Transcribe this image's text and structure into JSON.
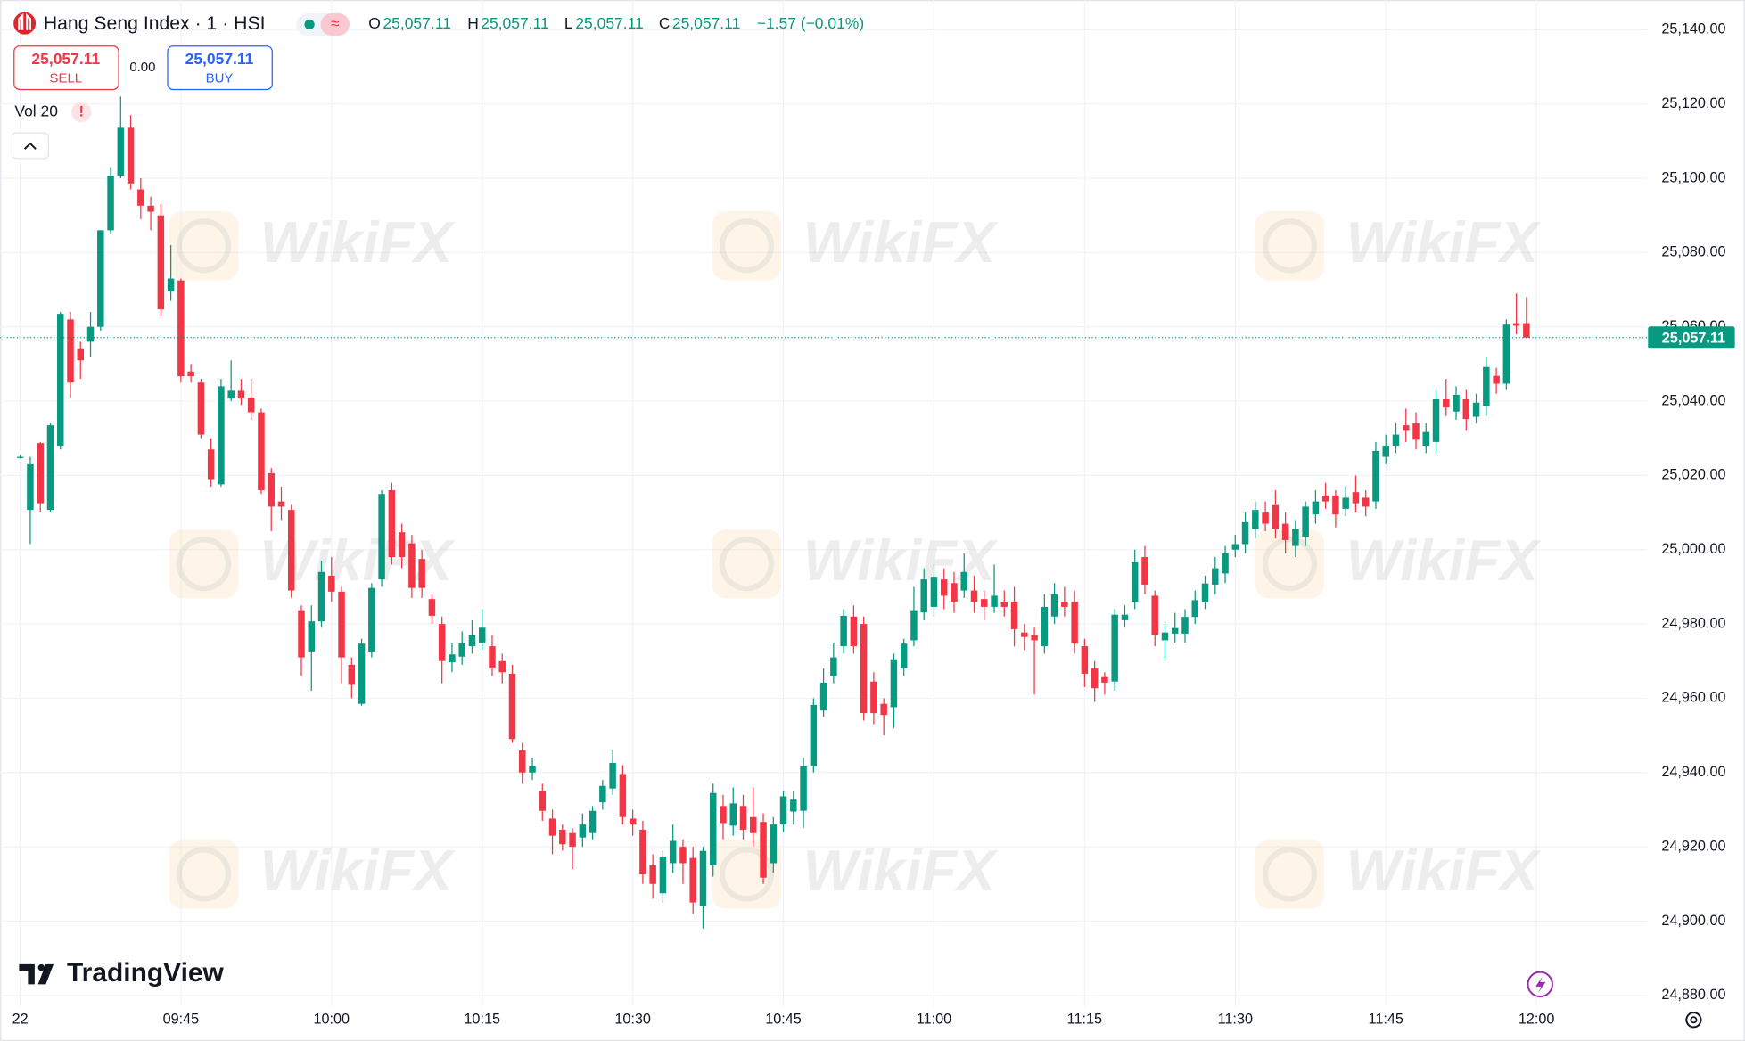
{
  "header": {
    "symbol": "Hang Seng Index · 1 · HSI",
    "ohlc": [
      {
        "label": "O",
        "value": "25,057.11"
      },
      {
        "label": "H",
        "value": "25,057.11"
      },
      {
        "label": "L",
        "value": "25,057.11"
      },
      {
        "label": "C",
        "value": "25,057.11"
      }
    ],
    "change": "−1.57 (−0.01%)"
  },
  "trade": {
    "sell_price": "25,057.11",
    "sell": "SELL",
    "spread": "0.00",
    "buy_price": "25,057.11",
    "buy": "BUY"
  },
  "volume_indicator": "Vol 20",
  "warning": "!",
  "brand": "TradingView",
  "watermark": "WikiFX",
  "chart_data": {
    "type": "candlestick",
    "up_color": "#089981",
    "down_color": "#f23645",
    "grid": true,
    "xlim": [
      "09:27",
      "12:11"
    ],
    "xticks": [
      {
        "value": "09:29",
        "label": "22"
      },
      "09:45",
      "10:00",
      "10:15",
      "10:30",
      "10:45",
      "11:00",
      "11:15",
      "11:30",
      "11:45",
      "12:00"
    ],
    "ylim": [
      24877,
      25148
    ],
    "yticks": [
      {
        "value": 25140,
        "label": "25,140.00"
      },
      {
        "value": 25120,
        "label": "25,120.00"
      },
      {
        "value": 25100,
        "label": "25,100.00"
      },
      {
        "value": 25080,
        "label": "25,080.00"
      },
      {
        "value": 25060,
        "label": "25,060.00"
      },
      {
        "value": 25040,
        "label": "25,040.00"
      },
      {
        "value": 25020,
        "label": "25,020.00"
      },
      {
        "value": 25000,
        "label": "25,000.00"
      },
      {
        "value": 24980,
        "label": "24,980.00"
      },
      {
        "value": 24960,
        "label": "24,960.00"
      },
      {
        "value": 24940,
        "label": "24,940.00"
      },
      {
        "value": 24920,
        "label": "24,920.00"
      },
      {
        "value": 24900,
        "label": "24,900.00"
      },
      {
        "value": 24880,
        "label": "24,880.00"
      }
    ],
    "last_price": {
      "value": 25057.11,
      "label": "25,057.11"
    },
    "x": [
      "09:29",
      "09:30",
      "09:31",
      "09:32",
      "09:33",
      "09:34",
      "09:35",
      "09:36",
      "09:37",
      "09:38",
      "09:39",
      "09:40",
      "09:41",
      "09:42",
      "09:43",
      "09:44",
      "09:45",
      "09:46",
      "09:47",
      "09:48",
      "09:49",
      "09:50",
      "09:51",
      "09:52",
      "09:53",
      "09:54",
      "09:55",
      "09:56",
      "09:57",
      "09:58",
      "09:59",
      "10:00",
      "10:01",
      "10:02",
      "10:03",
      "10:04",
      "10:05",
      "10:06",
      "10:07",
      "10:08",
      "10:09",
      "10:10",
      "10:11",
      "10:12",
      "10:13",
      "10:14",
      "10:15",
      "10:16",
      "10:17",
      "10:18",
      "10:19",
      "10:20",
      "10:21",
      "10:22",
      "10:23",
      "10:24",
      "10:25",
      "10:26",
      "10:27",
      "10:28",
      "10:29",
      "10:30",
      "10:31",
      "10:32",
      "10:33",
      "10:34",
      "10:35",
      "10:36",
      "10:37",
      "10:38",
      "10:39",
      "10:40",
      "10:41",
      "10:42",
      "10:43",
      "10:44",
      "10:45",
      "10:46",
      "10:47",
      "10:48",
      "10:49",
      "10:50",
      "10:51",
      "10:52",
      "10:53",
      "10:54",
      "10:55",
      "10:56",
      "10:57",
      "10:58",
      "10:59",
      "11:00",
      "11:01",
      "11:02",
      "11:03",
      "11:04",
      "11:05",
      "11:06",
      "11:07",
      "11:08",
      "11:09",
      "11:10",
      "11:11",
      "11:12",
      "11:13",
      "11:14",
      "11:15",
      "11:16",
      "11:17",
      "11:18",
      "11:19",
      "11:20",
      "11:21",
      "11:22",
      "11:23",
      "11:24",
      "11:25",
      "11:26",
      "11:27",
      "11:28",
      "11:29",
      "11:30",
      "11:31",
      "11:32",
      "11:33",
      "11:34",
      "11:35",
      "11:36",
      "11:37",
      "11:38",
      "11:39",
      "11:40",
      "11:41",
      "11:42",
      "11:43",
      "11:44",
      "11:45",
      "11:46",
      "11:47",
      "11:48",
      "11:49",
      "11:50",
      "11:51",
      "11:52",
      "11:53",
      "11:54",
      "11:55",
      "11:56",
      "11:57",
      "11:58",
      "11:59"
    ],
    "open": [
      25025,
      25010.7,
      25028.7,
      25010.7,
      25028,
      25062,
      25054,
      25056,
      25060,
      25086,
      25100.7,
      25113.6,
      25097,
      25092.6,
      25090,
      25069.5,
      25072.5,
      25048,
      25045,
      25027,
      25017.6,
      25040.7,
      25042.8,
      25041,
      25037,
      25020.6,
      25013,
      25010.7,
      24983.7,
      24972.6,
      24980.7,
      24993,
      24988.7,
      24969,
      24958.5,
      24972.6,
      24992,
      25016,
      25004.7,
      25001.7,
      24997.5,
      24986.7,
      24980,
      24969.7,
      24971.2,
      24974,
      24975,
      24974,
      24970,
      24966.6,
      24946,
      24940,
      24935,
      24927.6,
      24924.6,
      24923.7,
      24922.5,
      24923.7,
      24932,
      24935.7,
      24939.6,
      24927.6,
      24924.6,
      24915,
      24907.5,
      24915.6,
      24920,
      24917,
      24904,
      24915,
      24931,
      24925.7,
      24931,
      24928,
      24926.7,
      24915.6,
      24926,
      24929.5,
      24929.7,
      24941.7,
      24956.7,
      24966,
      24974,
      24982,
      24980,
      24964.5,
      24958.5,
      24957.6,
      24968.1,
      24975.6,
      24983.1,
      24984.6,
      24992,
      24991,
      24989,
      24989,
      24986.7,
      24984.6,
      24986,
      24986,
      24977.7,
      24977,
      24974,
      24982,
      24986,
      24986,
      24974,
      24968,
      24965.7,
      24964.5,
      24981,
      24986,
      24998,
      24987.6,
      24975.6,
      24977.4,
      24977.4,
      24981.9,
      24985.8,
      24990.6,
      24993.6,
      25000,
      25001.5,
      25005.6,
      25010,
      25012,
      25007,
      25001,
      25003.5,
      25009.5,
      25014.6,
      25014.6,
      25011,
      25015.5,
      25014,
      25013,
      25025,
      25028,
      25033.5,
      25034,
      25028,
      25029,
      25040.5,
      25037.2,
      25040.5,
      25035.8,
      25038.7,
      25046.8,
      25044.7,
      25061,
      25061
    ],
    "high": [
      25025.5,
      25025,
      25029,
      25034,
      25064,
      25064,
      25056,
      25064,
      25086,
      25103,
      25122,
      25117,
      25100,
      25095,
      25093,
      25082,
      25073,
      25050,
      25046,
      25030,
      25046,
      25051,
      25046,
      25046,
      25038,
      25022,
      25017,
      25012,
      24985,
      24985,
      24997,
      24998,
      24990,
      24971,
      24976,
      24991,
      25016,
      25018,
      25007,
      25004,
      25000,
      24988,
      24982,
      24975,
      24978,
      24981,
      24984,
      24977,
      24972,
      24969,
      24948,
      24944,
      24937,
      24930,
      24926,
      24925,
      24929,
      24931,
      24938,
      24946,
      24942,
      24930,
      24927,
      24918,
      24919,
      24926,
      24922,
      24920,
      24920,
      24937,
      24934,
      24936,
      24934,
      24936,
      24929,
      24928,
      24935,
      24935,
      24944,
      24960,
      24968,
      24975,
      24984,
      24985,
      24982,
      24967,
      24960,
      24972,
      24976,
      24990,
      24995,
      24996,
      24995,
      24994,
      24999,
      24993,
      24989,
      24996,
      24989,
      24990,
      24980,
      24979,
      24988,
      24991,
      24990,
      24989,
      24976,
      24970,
      24967,
      24984,
      24985,
      25000,
      25001,
      24989,
      24980,
      24983,
      24984,
      24989,
      24993,
      24998,
      25001,
      25004,
      25010,
      25013,
      25013,
      25016,
      25010,
      25008,
      25013,
      25016,
      25018,
      25016,
      25017,
      25020,
      25016,
      25029,
      25031,
      25034,
      25038,
      25037,
      25034,
      25043,
      25046,
      25044,
      25043,
      25042,
      25052,
      25049,
      25062,
      25069,
      25068
    ],
    "low": [
      25024.5,
      25001.5,
      25010,
      25010,
      25027,
      25041,
      25046,
      25052,
      25059,
      25085,
      25100,
      25097,
      25089,
      25086,
      25063,
      25067,
      25045,
      25045,
      25030,
      25017,
      25017,
      25040,
      25039,
      25035,
      25015,
      25005,
      25008,
      24987,
      24966,
      24962,
      24979,
      24986,
      24964,
      24960,
      24958,
      24971,
      24990,
      24996,
      24995,
      24987,
      24987,
      24980,
      24964,
      24967,
      24969,
      24972,
      24973,
      24966,
      24964,
      24948,
      24937,
      24938,
      24927,
      24918,
      24919,
      24914,
      24920,
      24922,
      24930,
      24934,
      24926,
      24923,
      24910,
      24906,
      24905,
      24913,
      24910,
      24902,
      24898,
      24912,
      24922,
      24923,
      24922,
      24920,
      24910,
      24913,
      24924,
      24926,
      24925,
      24940,
      24955,
      24964,
      24972,
      24972,
      24954,
      24953,
      24950,
      24952,
      24966,
      24974,
      24981,
      24982,
      24984,
      24983,
      24987,
      24983,
      24981,
      24983,
      24982,
      24974,
      24973,
      24961,
      24972,
      24980,
      24982,
      24972,
      24963,
      24959,
      24961,
      24962,
      24979,
      24984,
      24988,
      24974,
      24970,
      24975,
      24975,
      24980,
      24984,
      24988,
      24991,
      24998,
      24999,
      25003,
      25005,
      25003,
      24999,
      24998,
      25001,
      25007,
      25011,
      25006,
      25009,
      25010,
      25009,
      25011,
      25023,
      25026,
      25029,
      25027,
      25026,
      25026,
      25036,
      25035,
      25032,
      25034,
      25036,
      25042,
      25043,
      25058,
      25057
    ],
    "close": [
      25025,
      25023,
      25012.5,
      25033.5,
      25063.5,
      25045,
      25051,
      25060,
      25086,
      25100.7,
      25113.6,
      25098.6,
      25092.6,
      25091,
      25064.7,
      25073,
      25046.7,
      25046.7,
      25031,
      25019,
      25044,
      25042.8,
      25040.7,
      25037,
      25016,
      25011.6,
      25011.6,
      24989,
      24971,
      24980.7,
      24994,
      24988.7,
      24971,
      24963.6,
      24974.7,
      24989.7,
      25015,
      24998,
      24998,
      24989.7,
      24989.7,
      24982.2,
      24970,
      24971.8,
      24974.8,
      24977,
      24979,
      24968,
      24967,
      24949,
      24940,
      24941.7,
      24929.7,
      24923,
      24920.7,
      24920,
      24926,
      24929.7,
      24936.4,
      24942.6,
      24928,
      24926,
      24912.6,
      24910,
      24917.4,
      24921.6,
      24915.6,
      24905,
      24918.9,
      24934.5,
      24926.4,
      24931.7,
      24924.6,
      24923.7,
      24911.7,
      24926,
      24933.6,
      24932.7,
      24941.7,
      24958.2,
      24964.2,
      24971,
      24982.2,
      24974,
      24956,
      24956,
      24955.5,
      24970.5,
      24974.7,
      24983.7,
      24992,
      24992.7,
      24987.6,
      24986,
      24994,
      24986,
      24984.6,
      24987.6,
      24984.6,
      24978.6,
      24976.5,
      24975.6,
      24984.6,
      24988,
      24984.6,
      24974.7,
      24966.6,
      24962.7,
      24964.2,
      24982.5,
      24982.5,
      24996.6,
      24990.6,
      24977.1,
      24977.7,
      24978.9,
      24981.9,
      24986.4,
      24990.9,
      24995,
      24999,
      25001.5,
      25007.4,
      25010.7,
      25007,
      25005.6,
      25002.6,
      25005.6,
      25011.6,
      25013,
      25013,
      25009.5,
      25014,
      25012.5,
      25011.6,
      25026.6,
      25028,
      25031,
      25032,
      25029.6,
      25031.7,
      25040.5,
      25038.3,
      25041.7,
      25035.2,
      25039.6,
      25049.2,
      25044.7,
      25060.6,
      25060.3,
      25057.11
    ]
  }
}
